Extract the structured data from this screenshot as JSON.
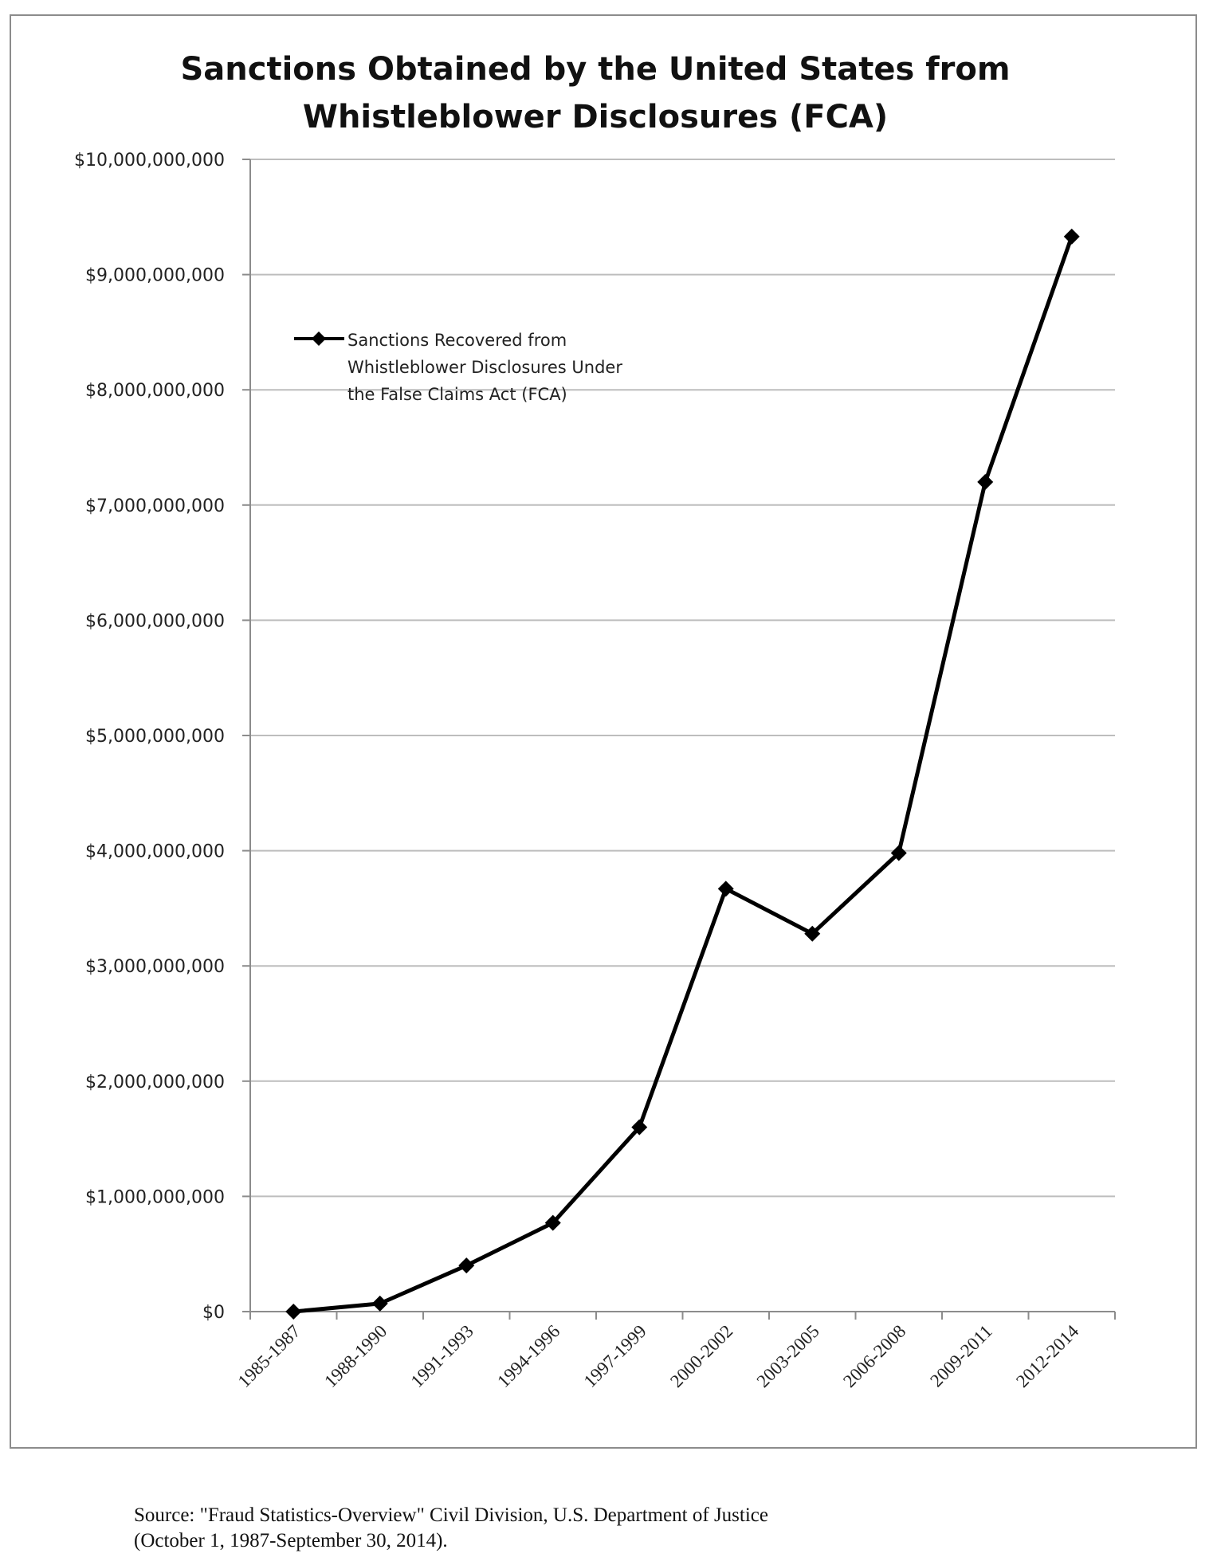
{
  "chart_data": {
    "type": "line",
    "title_lines": [
      "Sanctions Obtained by the United States from",
      "Whistleblower Disclosures (FCA)"
    ],
    "xlabel": "",
    "ylabel": "",
    "categories": [
      "1985-1987",
      "1988-1990",
      "1991-1993",
      "1994-1996",
      "1997-1999",
      "2000-2002",
      "2003-2005",
      "2006-2008",
      "2009-2011",
      "2012-2014"
    ],
    "series": [
      {
        "name_lines": [
          "Sanctions Recovered from",
          "Whistleblower Disclosures Under",
          "the False Claims Act (FCA)"
        ],
        "values": [
          0,
          70000000,
          400000000,
          770000000,
          1600000000,
          3670000000,
          3280000000,
          3980000000,
          7200000000,
          9330000000
        ],
        "color": "#000000",
        "marker": "diamond"
      }
    ],
    "ylim": [
      0,
      10000000000
    ],
    "ytick_step": 1000000000,
    "ytick_labels": [
      "$0",
      "$1,000,000,000",
      "$2,000,000,000",
      "$3,000,000,000",
      "$4,000,000,000",
      "$5,000,000,000",
      "$6,000,000,000",
      "$7,000,000,000",
      "$8,000,000,000",
      "$9,000,000,000",
      "$10,000,000,000"
    ],
    "grid": true,
    "legend_position": "upper-left"
  },
  "source": {
    "line1": "Source: \"Fraud Statistics-Overview\" Civil Division, U.S. Department of Justice",
    "line2": "(October 1, 1987-September 30, 2014)."
  },
  "colors": {
    "grid": "#bdbdbd",
    "axis": "#8c8c8c",
    "line": "#000000",
    "text": "#000000"
  }
}
